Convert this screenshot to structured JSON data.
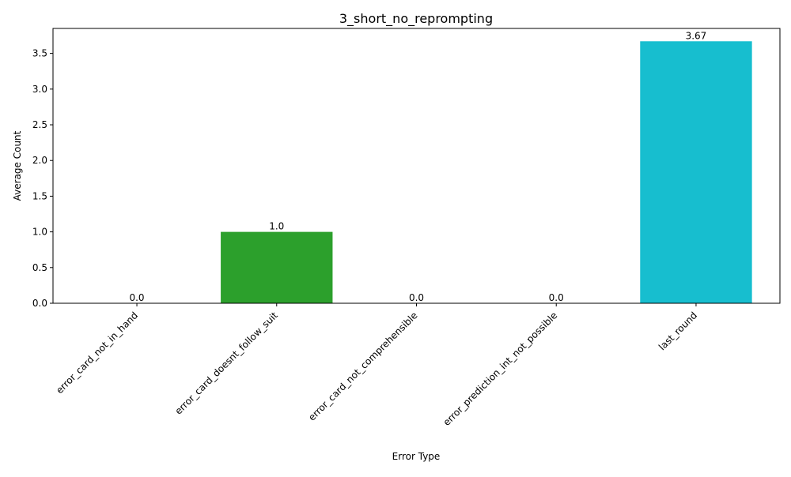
{
  "chart_data": {
    "type": "bar",
    "title": "3_short_no_reprompting",
    "xlabel": "Error Type",
    "ylabel": "Average Count",
    "categories": [
      "error_card_not_in_hand",
      "error_card_doesnt_follow_suit",
      "error_card_not_comprehensible",
      "error_prediction_int_not_possible",
      "last_round"
    ],
    "values": [
      0.0,
      1.0,
      0.0,
      0.0,
      3.67
    ],
    "value_labels": [
      "0.0",
      "1.0",
      "0.0",
      "0.0",
      "3.67"
    ],
    "colors": [
      "#1f77b4",
      "#2ca02c",
      "#7f7f7f",
      "#bcbd22",
      "#17becf"
    ],
    "ylim": [
      0,
      3.85
    ],
    "yticks": [
      0.0,
      0.5,
      1.0,
      1.5,
      2.0,
      2.5,
      3.0,
      3.5
    ],
    "ytick_labels": [
      "0.0",
      "0.5",
      "1.0",
      "1.5",
      "2.0",
      "2.5",
      "3.0",
      "3.5"
    ],
    "grid": false,
    "legend": false
  }
}
